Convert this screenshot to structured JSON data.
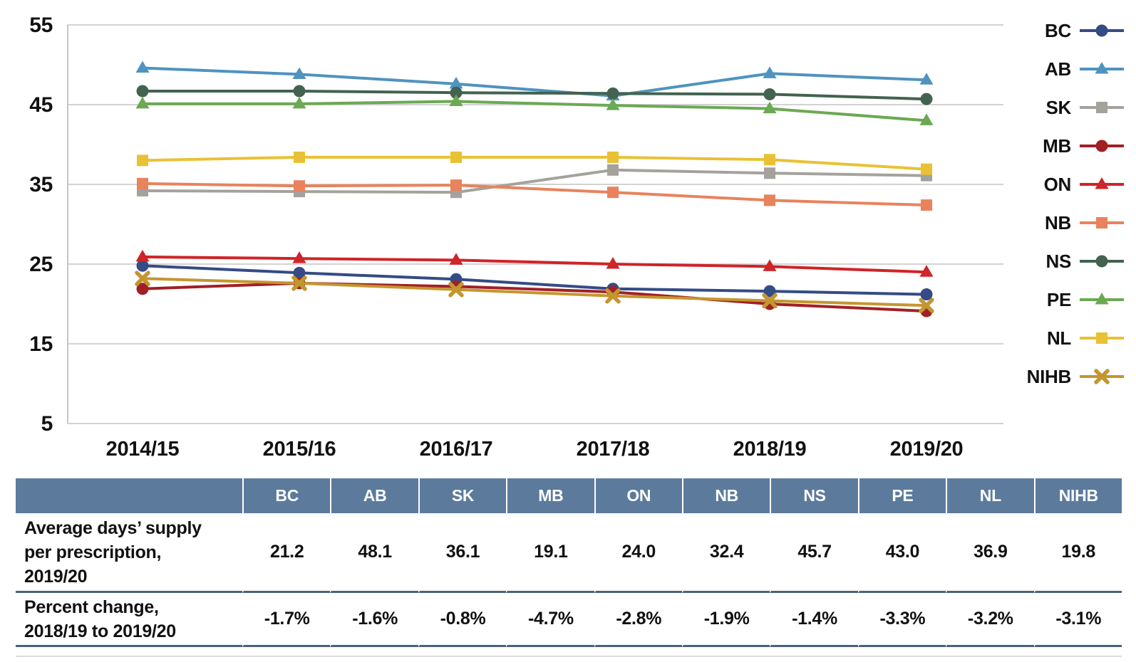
{
  "chart_data": {
    "type": "line",
    "x_categories": [
      "2014/15",
      "2015/16",
      "2016/17",
      "2017/18",
      "2018/19",
      "2019/20"
    ],
    "y_ticks": [
      55,
      45,
      35,
      25,
      15,
      5
    ],
    "ylim": [
      5,
      55
    ],
    "grid": "horizontal",
    "legend_position": "right",
    "series": [
      {
        "key": "BC",
        "label": "BC",
        "color": "#344b85",
        "marker": "circle",
        "values": [
          24.8,
          23.9,
          23.1,
          21.9,
          21.6,
          21.2
        ]
      },
      {
        "key": "AB",
        "label": "AB",
        "color": "#4f93be",
        "marker": "triangle",
        "values": [
          49.6,
          48.8,
          47.6,
          46.1,
          48.9,
          48.1
        ]
      },
      {
        "key": "SK",
        "label": "SK",
        "color": "#a5a29c",
        "marker": "square",
        "values": [
          34.2,
          34.1,
          34.0,
          36.8,
          36.4,
          36.1
        ]
      },
      {
        "key": "MB",
        "label": "MB",
        "color": "#a02025",
        "marker": "circle",
        "values": [
          21.9,
          22.6,
          22.2,
          21.5,
          20.0,
          19.1
        ]
      },
      {
        "key": "ON",
        "label": "ON",
        "color": "#cf2428",
        "marker": "triangle",
        "values": [
          25.9,
          25.7,
          25.5,
          25.0,
          24.7,
          24.0
        ]
      },
      {
        "key": "NB",
        "label": "NB",
        "color": "#e8835d",
        "marker": "square",
        "values": [
          35.1,
          34.8,
          34.9,
          34.0,
          33.0,
          32.4
        ]
      },
      {
        "key": "NS",
        "label": "NS",
        "color": "#436250",
        "marker": "circle",
        "values": [
          46.7,
          46.7,
          46.5,
          46.4,
          46.3,
          45.7
        ]
      },
      {
        "key": "PE",
        "label": "PE",
        "color": "#6ba953",
        "marker": "triangle",
        "values": [
          45.1,
          45.1,
          45.4,
          44.9,
          44.5,
          43.0
        ]
      },
      {
        "key": "NL",
        "label": "NL",
        "color": "#e9c134",
        "marker": "square",
        "values": [
          38.0,
          38.4,
          38.4,
          38.4,
          38.1,
          36.9
        ]
      },
      {
        "key": "NIHB",
        "label": "NIHB",
        "color": "#c4962f",
        "marker": "x",
        "values": [
          23.2,
          22.6,
          21.8,
          21.0,
          20.4,
          19.8
        ]
      }
    ]
  },
  "table": {
    "columns": [
      "BC",
      "AB",
      "SK",
      "MB",
      "ON",
      "NB",
      "NS",
      "PE",
      "NL",
      "NIHB"
    ],
    "rows": [
      {
        "label": "Average days’ supply\nper prescription,\n2019/20",
        "values": [
          "21.2",
          "48.1",
          "36.1",
          "19.1",
          "24.0",
          "32.4",
          "45.7",
          "43.0",
          "36.9",
          "19.8"
        ]
      },
      {
        "label": "Percent change,\n2018/19 to 2019/20",
        "values": [
          "-1.7%",
          "-1.6%",
          "-0.8%",
          "-4.7%",
          "-2.8%",
          "-1.9%",
          "-1.4%",
          "-3.3%",
          "-3.2%",
          "-3.1%"
        ]
      }
    ],
    "header_bg": "#5c7b9c",
    "bottom_border_color": "#46627f"
  },
  "style_colors": {
    "gridline": "#d2d2d2",
    "axis_spine": "#c6c6c6",
    "text": "#111111"
  }
}
